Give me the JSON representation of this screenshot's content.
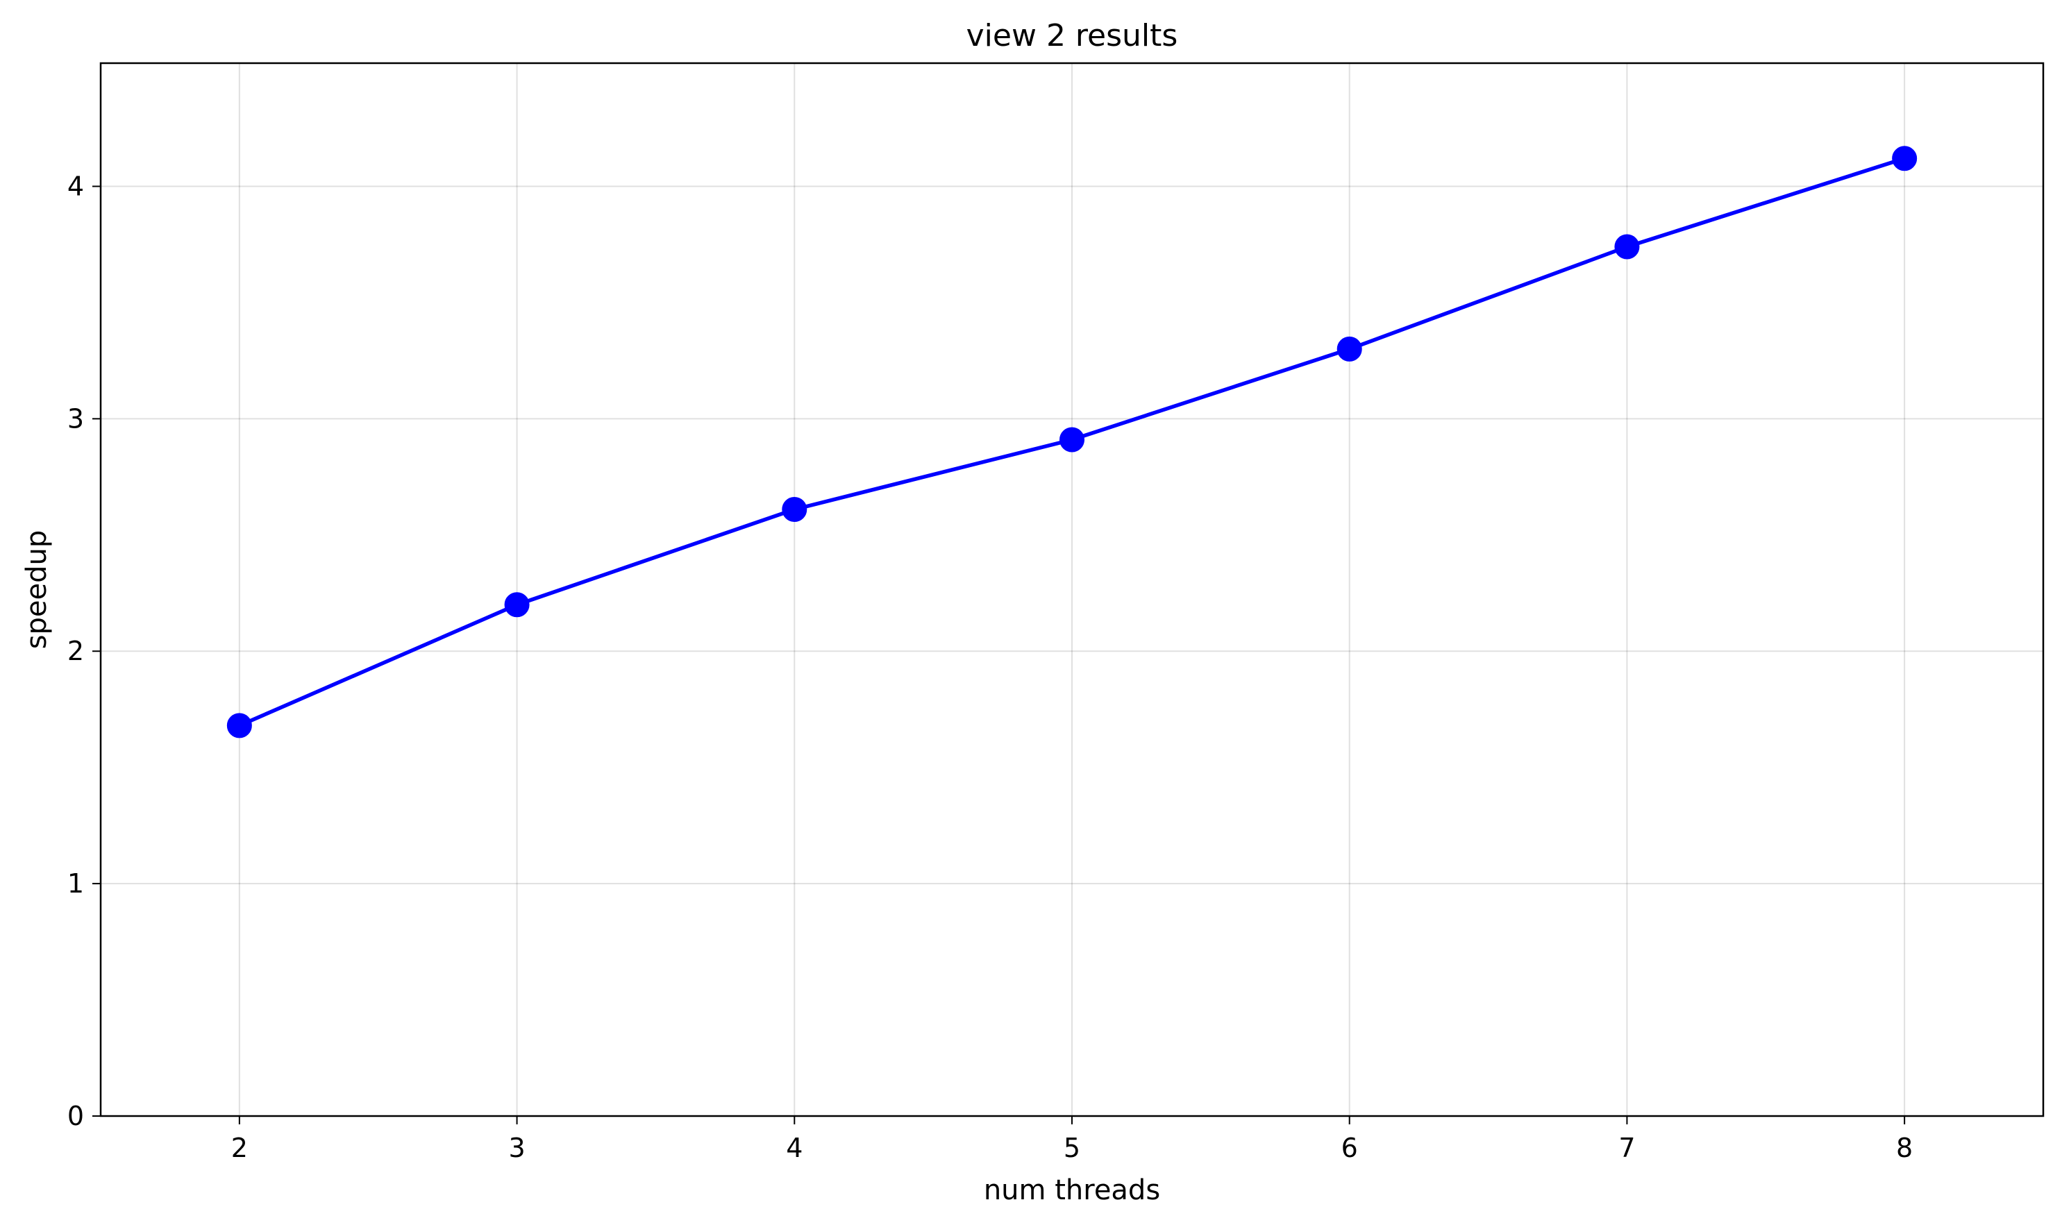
{
  "chart_data": {
    "type": "line",
    "title": "view 2 results",
    "xlabel": "num threads",
    "ylabel": "speedup",
    "x": [
      2,
      3,
      4,
      5,
      6,
      7,
      8
    ],
    "series": [
      {
        "values": [
          1.68,
          2.2,
          2.61,
          2.91,
          3.3,
          3.74,
          4.12
        ],
        "color": "#0000ff",
        "marker": "circle"
      }
    ],
    "xlim": [
      1.5,
      8.5
    ],
    "ylim": [
      0,
      4.53
    ],
    "xticks": [
      "2",
      "3",
      "4",
      "5",
      "6",
      "7",
      "8"
    ],
    "yticks": [
      "0",
      "1",
      "2",
      "3",
      "4"
    ],
    "grid": true,
    "legend": "none"
  }
}
